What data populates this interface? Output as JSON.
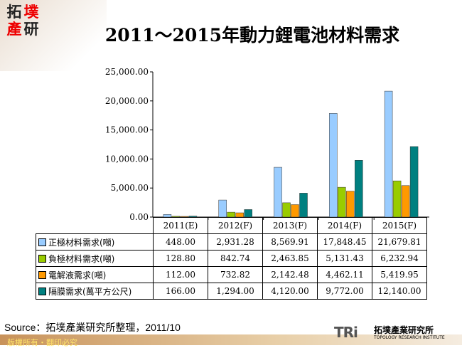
{
  "logo": {
    "chars": [
      "拓",
      "墣",
      "產",
      "研"
    ]
  },
  "title": "2011～2015年動力鋰電池材料需求",
  "chart_data": {
    "type": "bar",
    "title": "2011～2015年動力鋰電池材料需求",
    "categories": [
      "2011(E)",
      "2012(F)",
      "2013(F)",
      "2014(F)",
      "2015(F)"
    ],
    "ylim": [
      0,
      25000
    ],
    "yticks": [
      "0.00",
      "5,000.00",
      "10,000.00",
      "15,000.00",
      "20,000.00",
      "25,000.00"
    ],
    "ytick_values": [
      0,
      5000,
      10000,
      15000,
      20000,
      25000
    ],
    "grid": false,
    "legend": "table",
    "series": [
      {
        "name": "正極材料需求(噸)",
        "color": "#99ccff",
        "values": [
          448.0,
          2931.28,
          8569.91,
          17848.45,
          21679.81
        ],
        "labels": [
          "448.00",
          "2,931.28",
          "8,569.91",
          "17,848.45",
          "21,679.81"
        ]
      },
      {
        "name": "負極材料需求(噸)",
        "color": "#99cc00",
        "values": [
          128.8,
          842.74,
          2463.85,
          5131.43,
          6232.94
        ],
        "labels": [
          "128.80",
          "842.74",
          "2,463.85",
          "5,131.43",
          "6,232.94"
        ]
      },
      {
        "name": "電解液需求(噸)",
        "color": "#ff9900",
        "values": [
          112.0,
          732.82,
          2142.48,
          4462.11,
          5419.95
        ],
        "labels": [
          "112.00",
          "732.82",
          "2,142.48",
          "4,462.11",
          "5,419.95"
        ]
      },
      {
        "name": "隔膜需求(萬平方公尺)",
        "color": "#008080",
        "values": [
          166.0,
          1294.0,
          4120.0,
          9772.0,
          12140.0
        ],
        "labels": [
          "166.00",
          "1,294.00",
          "4,120.00",
          "9,772.00",
          "12,140.00"
        ]
      }
    ]
  },
  "source": "Source：拓墣產業研究所整理，2011/10",
  "footer": "版權所有・翻印必究",
  "brand": {
    "mark": "TRi",
    "cn": "拓墣產業研究所",
    "en": "TOPOLOGY RESEARCH INSTITUTE"
  }
}
